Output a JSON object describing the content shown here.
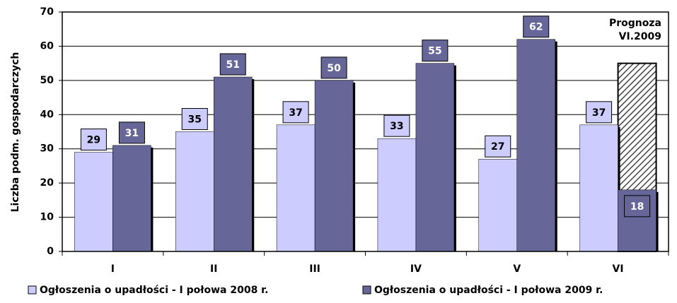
{
  "chart_data": {
    "type": "bar",
    "y_axis_label": "Liczba podm. gospodarczych",
    "categories": [
      "I",
      "II",
      "III",
      "IV",
      "V",
      "VI"
    ],
    "series": [
      {
        "name": "Ogłoszenia o upadłości - I połowa 2008 r.",
        "color": "#ccccff",
        "values": [
          29,
          35,
          37,
          33,
          27,
          37
        ]
      },
      {
        "name": "Ogłoszenia o upadłości - I połowa 2009 r.",
        "color": "#666699",
        "values": [
          31,
          51,
          50,
          55,
          62,
          18
        ]
      }
    ],
    "forecast": {
      "category_index": 5,
      "series_index": 1,
      "value": 55,
      "label": [
        "Prognoza",
        "VI.2009"
      ]
    },
    "ylim": [
      0,
      70
    ],
    "yticks": [
      0,
      10,
      20,
      30,
      40,
      50,
      60,
      70
    ],
    "grid": true,
    "legend": "bottom"
  }
}
